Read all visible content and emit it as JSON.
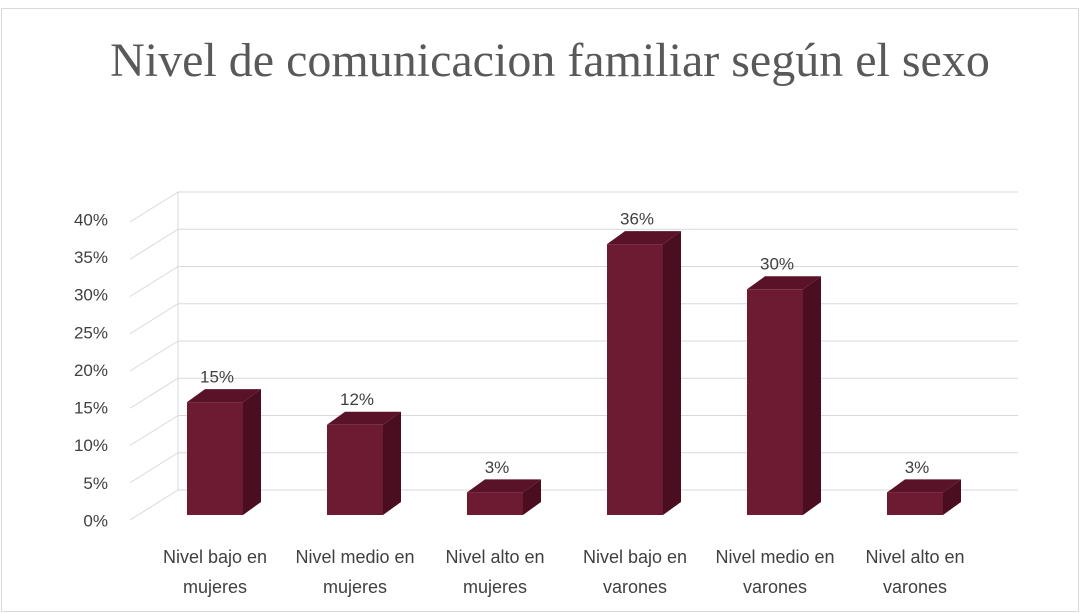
{
  "chart_data": {
    "type": "bar3d",
    "title": "Nivel de comunicacion familiar según el sexo",
    "categories": [
      "Nivel bajo en mujeres",
      "Nivel medio en mujeres",
      "Nivel alto en mujeres",
      "Nivel bajo en varones",
      "Nivel medio en varones",
      "Nivel alto en varones"
    ],
    "values": [
      15,
      12,
      3,
      36,
      30,
      3
    ],
    "value_labels": [
      "15%",
      "12%",
      "3%",
      "36%",
      "30%",
      "3%"
    ],
    "color": "#6d1a33",
    "ylim": [
      0,
      40
    ],
    "yticks": [
      {
        "value": 0,
        "label": "0%"
      },
      {
        "value": 5,
        "label": "5%"
      },
      {
        "value": 10,
        "label": "10%"
      },
      {
        "value": 15,
        "label": "15%"
      },
      {
        "value": 20,
        "label": "20%"
      },
      {
        "value": 25,
        "label": "25%"
      },
      {
        "value": 30,
        "label": "30%"
      },
      {
        "value": 35,
        "label": "35%"
      },
      {
        "value": 40,
        "label": "40%"
      }
    ],
    "grid": true
  }
}
